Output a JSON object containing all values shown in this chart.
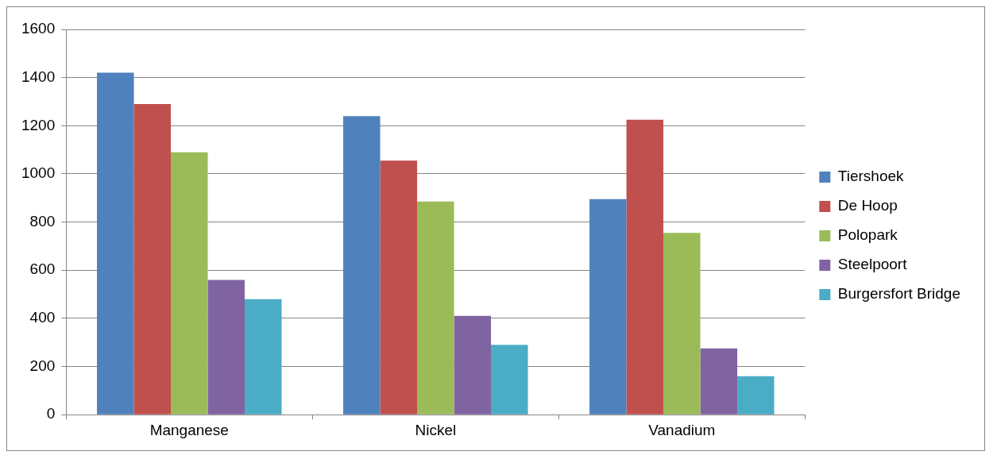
{
  "chart_data": {
    "type": "bar",
    "categories": [
      "Manganese",
      "Nickel",
      "Vanadium"
    ],
    "series": [
      {
        "name": "Tiershoek",
        "color": "#4f81bd",
        "values": [
          1420,
          1240,
          895
        ]
      },
      {
        "name": "De Hoop",
        "color": "#c0504d",
        "values": [
          1290,
          1055,
          1225
        ]
      },
      {
        "name": "Polopark",
        "color": "#9bbb59",
        "values": [
          1090,
          885,
          755
        ]
      },
      {
        "name": "Steelpoort",
        "color": "#8064a2",
        "values": [
          560,
          410,
          275
        ]
      },
      {
        "name": "Burgersfort Bridge",
        "color": "#4bacc6",
        "values": [
          480,
          290,
          160
        ]
      }
    ],
    "ylim": [
      0,
      1600
    ],
    "yticks": [
      0,
      200,
      400,
      600,
      800,
      1000,
      1200,
      1400,
      1600
    ],
    "grid": "y",
    "legend": "right"
  }
}
